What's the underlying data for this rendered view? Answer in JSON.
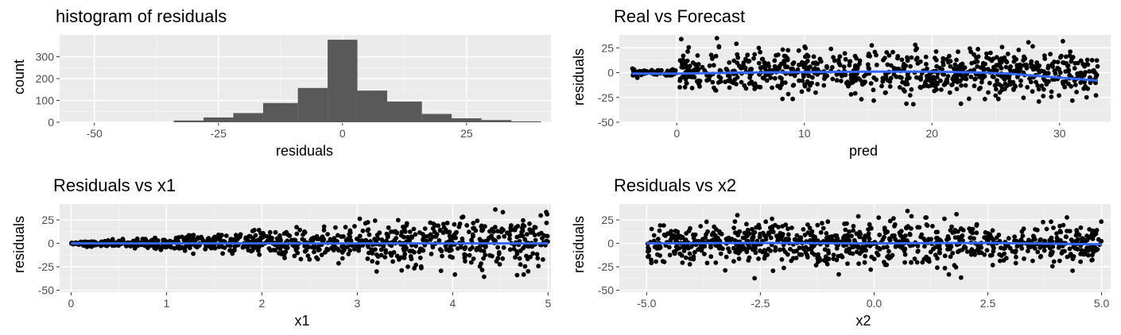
{
  "chart_data": [
    {
      "type": "histogram",
      "title": "histogram of residuals",
      "xlabel": "residuals",
      "ylabel": "count",
      "xlim": [
        -57,
        42
      ],
      "ylim": [
        0,
        400
      ],
      "xticks": [
        -50,
        -25,
        0,
        25
      ],
      "yticks": [
        0,
        100,
        200,
        300
      ],
      "bins": [
        {
          "x0": -34,
          "x1": -28,
          "count": 8
        },
        {
          "x0": -28,
          "x1": -22,
          "count": 22
        },
        {
          "x0": -22,
          "x1": -16,
          "count": 42
        },
        {
          "x0": -16,
          "x1": -9,
          "count": 88
        },
        {
          "x0": -9,
          "x1": -3,
          "count": 157
        },
        {
          "x0": -3,
          "x1": 3,
          "count": 378
        },
        {
          "x0": 3,
          "x1": 9,
          "count": 145
        },
        {
          "x0": 9,
          "x1": 16,
          "count": 95
        },
        {
          "x0": 16,
          "x1": 22,
          "count": 38
        },
        {
          "x0": 22,
          "x1": 28,
          "count": 18
        },
        {
          "x0": 28,
          "x1": 34,
          "count": 10
        },
        {
          "x0": 34,
          "x1": 40,
          "count": 4
        }
      ],
      "grid": true
    },
    {
      "type": "scatter",
      "title": "Real vs Forecast",
      "xlabel": "pred",
      "ylabel": "residuals",
      "xlim": [
        -4.5,
        34
      ],
      "ylim": [
        -50,
        38
      ],
      "xticks": [
        0,
        10,
        20,
        30
      ],
      "yticks": [
        -50,
        -25,
        0,
        25
      ],
      "x_range": [
        -3.5,
        33
      ],
      "noise": "heteroscedastic",
      "smooth": {
        "x": [
          -3.5,
          0,
          5,
          10,
          15,
          20,
          24,
          26,
          28,
          30,
          33
        ],
        "y": [
          -1,
          -1,
          0,
          0.5,
          1,
          1,
          0,
          -1,
          -3,
          -5,
          -8
        ]
      },
      "grid": true
    },
    {
      "type": "scatter",
      "title": "Residuals vs  x1",
      "xlabel": "x1",
      "ylabel": "residuals",
      "xlim": [
        -0.12,
        5.03
      ],
      "ylim": [
        -52,
        42
      ],
      "xticks": [
        0,
        1,
        2,
        3,
        4,
        5
      ],
      "yticks": [
        -50,
        -25,
        0,
        25
      ],
      "x_range": [
        0,
        5
      ],
      "noise": "fan",
      "smooth": {
        "x": [
          0,
          1,
          2,
          3,
          4,
          5
        ],
        "y": [
          0,
          0,
          0,
          0,
          0,
          0
        ]
      },
      "grid": true
    },
    {
      "type": "scatter",
      "title": "Residuals vs  x2",
      "xlabel": "x2",
      "ylabel": "residuals",
      "xlim": [
        -5.6,
        5.2
      ],
      "ylim": [
        -52,
        42
      ],
      "xticks": [
        -5.0,
        -2.5,
        0.0,
        2.5,
        5.0
      ],
      "ytick_labels": [
        "-50",
        "-25",
        "0",
        "25"
      ],
      "yticks": [
        -50,
        -25,
        0,
        25
      ],
      "xtick_labels": [
        "-5.0",
        "-2.5",
        "0.0",
        "2.5",
        "5.0"
      ],
      "x_range": [
        -5,
        5
      ],
      "noise": "uniform",
      "smooth": {
        "x": [
          -5,
          -2.5,
          0,
          2.5,
          5
        ],
        "y": [
          0,
          0.5,
          0,
          0.5,
          -1
        ]
      },
      "grid": true
    }
  ],
  "colors": {
    "panel_bg": "#ebebeb",
    "grid_major": "#ffffff",
    "bar_fill": "#595959",
    "point": "#000000",
    "smooth_line": "#3366ff",
    "tick_text": "#4d4d4d"
  }
}
